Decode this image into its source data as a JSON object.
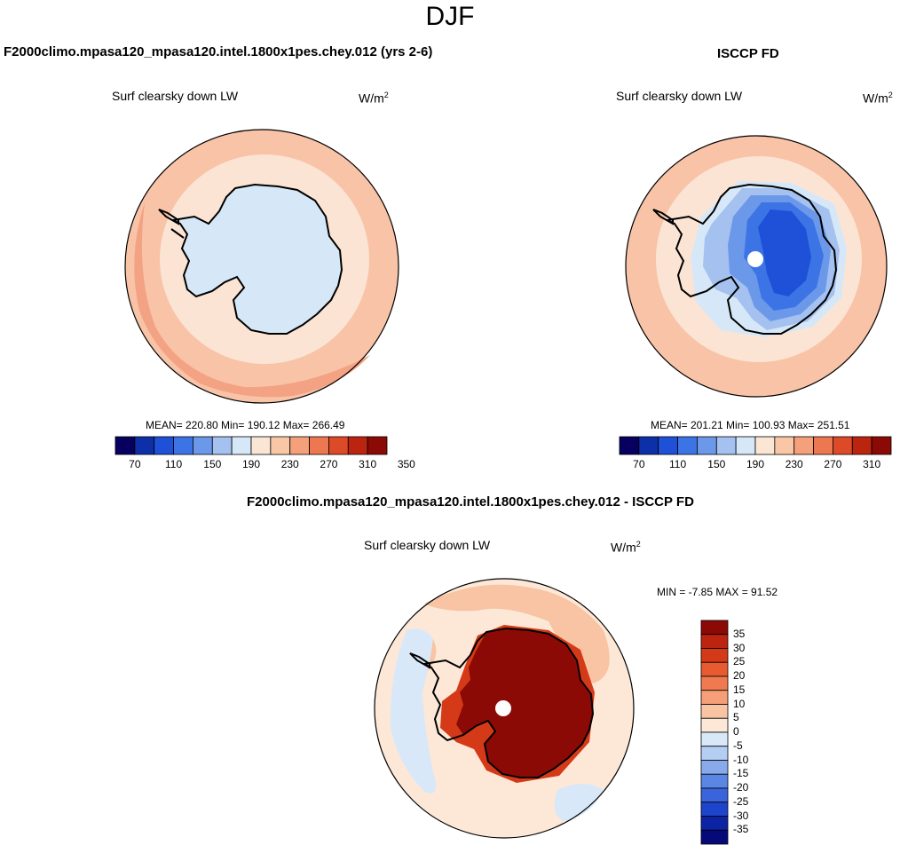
{
  "header": {
    "season": "DJF"
  },
  "panels": [
    {
      "id": "model",
      "title": "F2000climo.mpasa120_mpasa120.intel.1800x1pes.chey.012 (yrs 2-6)",
      "variable": "Surf clearsky down LW",
      "units_base": "W/m",
      "units_exp": "2",
      "stats": "MEAN= 220.80  Min= 190.12  Max= 266.49",
      "stats_values": {
        "mean": 220.8,
        "min": 190.12,
        "max": 266.49
      }
    },
    {
      "id": "obs",
      "title": "ISCCP FD",
      "variable": "Surf clearsky down LW",
      "units_base": "W/m",
      "units_exp": "2",
      "stats": "MEAN= 201.21  Min= 100.93  Max= 251.51",
      "stats_values": {
        "mean": 201.21,
        "min": 100.93,
        "max": 251.51
      }
    },
    {
      "id": "diff",
      "title": "F2000climo.mpasa120_mpasa120.intel.1800x1pes.chey.012 - ISCCP FD",
      "variable": "Surf clearsky down LW",
      "units_base": "W/m",
      "units_exp": "2",
      "stats": "MIN =  -7.85 MAX =  91.52",
      "stats_values": {
        "min": -7.85,
        "max": 91.52
      }
    }
  ],
  "colorbar_abs": {
    "colors": [
      "#08005e",
      "#0d2fa8",
      "#1e50d8",
      "#3c74e6",
      "#6c98ea",
      "#a4c1ef",
      "#d6e8f8",
      "#fbe6d6",
      "#f9c7a6",
      "#f4a07a",
      "#ec7750",
      "#dd4a28",
      "#bb2510",
      "#8c0a06"
    ],
    "tick_labels": [
      "70",
      "110",
      "150",
      "190",
      "230",
      "270",
      "310",
      "350"
    ]
  },
  "colorbar_diff": {
    "colors": [
      "#8c0a06",
      "#bb2510",
      "#d43a18",
      "#e85a30",
      "#f07a50",
      "#f59e78",
      "#f8c4a4",
      "#fde8d8",
      "#d8e8f8",
      "#b4cdf2",
      "#88aaea",
      "#5a86e4",
      "#3a64dc",
      "#1f44cc",
      "#0c24a4",
      "#050a78"
    ],
    "tick_labels": [
      "35",
      "30",
      "25",
      "20",
      "15",
      "10",
      "5",
      "0",
      "-5",
      "-10",
      "-15",
      "-20",
      "-25",
      "-30",
      "-35"
    ]
  },
  "map_colors": {
    "outer_ring": "#f8c3a6",
    "ring_mid": "#fbe4d4",
    "edge_warm": "#f3a283",
    "ant_model": "#d6e8f8",
    "obs_c1": "#a4c1ef",
    "obs_c2": "#6c98ea",
    "obs_c3": "#3c74e6",
    "obs_c4": "#1e50d8",
    "obs_c5": "#0d2fa8",
    "diff_base": "#fde8d8",
    "diff_warm": "#f8c4a4",
    "diff_blue": "#d8e8f8",
    "diff_red": "#8c0a06",
    "diff_red2": "#d43a18"
  }
}
